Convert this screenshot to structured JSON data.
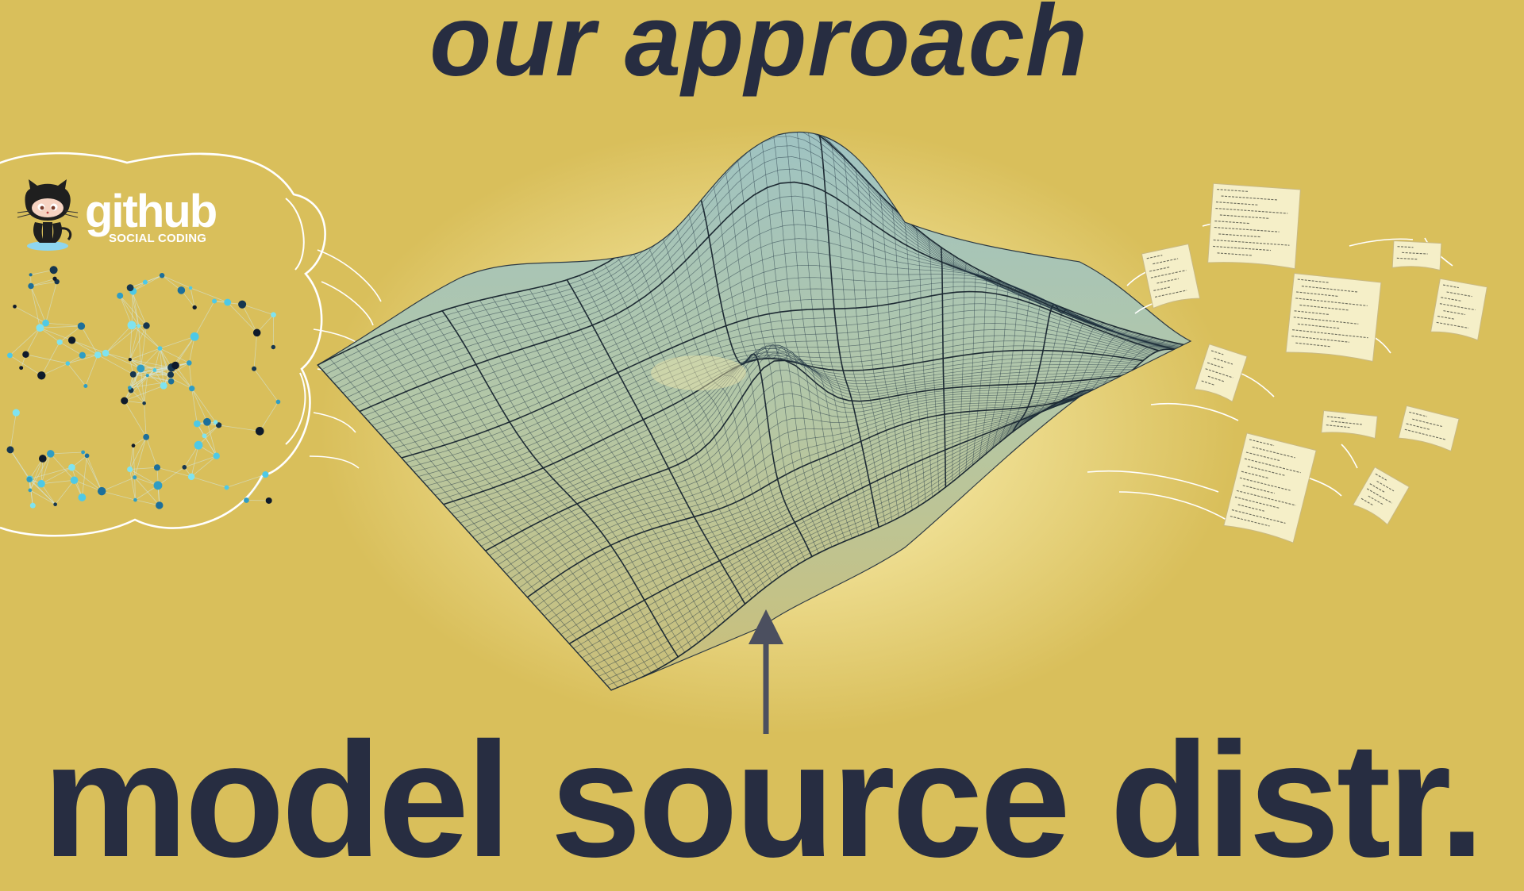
{
  "slide": {
    "heading": "our approach",
    "caption": "model source distr.",
    "background_color": "#d9bf5b",
    "text_color": "#272d41"
  },
  "github_logo": {
    "wordmark": "github",
    "tagline": "SOCIAL CODING",
    "icon": "octocat-icon"
  },
  "illustrations": {
    "network": "network-graph-icon",
    "surface": "probability-surface-mesh",
    "arrow": "up-arrow-icon",
    "documents": "code-document-icon"
  }
}
